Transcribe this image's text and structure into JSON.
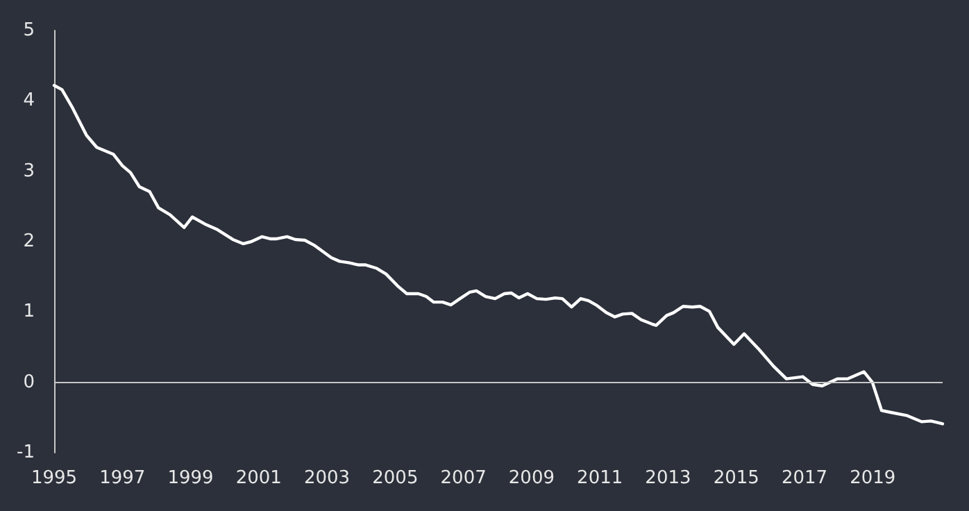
{
  "chart_data": {
    "type": "line",
    "xlim": [
      1995,
      2021.05
    ],
    "xticks": [
      1995,
      1997,
      1999,
      2001,
      2003,
      2005,
      2007,
      2009,
      2011,
      2013,
      2015,
      2017,
      2019
    ],
    "ylim": [
      -1,
      5
    ],
    "yticks": [
      -1,
      0,
      1,
      2,
      3,
      4,
      5
    ],
    "ref_lines": [
      {
        "axis": "y",
        "value": 0,
        "color": "#c8c8c8"
      }
    ],
    "marker": "none",
    "line_style": "solid",
    "series": [
      {
        "color": "#ffffff",
        "x": [
          1995.0,
          1995.23,
          1995.54,
          1995.95,
          1996.25,
          1996.74,
          1997.0,
          1997.24,
          1997.5,
          1997.8,
          1998.06,
          1998.4,
          1998.81,
          1999.05,
          1999.42,
          1999.79,
          2000.24,
          2000.54,
          2000.78,
          2001.09,
          2001.33,
          2001.53,
          2001.83,
          2002.07,
          2002.35,
          2002.62,
          2003.13,
          2003.37,
          2003.64,
          2003.91,
          2004.12,
          2004.46,
          2004.73,
          2005.07,
          2005.34,
          2005.68,
          2005.91,
          2006.13,
          2006.39,
          2006.63,
          2006.9,
          2007.18,
          2007.38,
          2007.65,
          2007.93,
          2008.2,
          2008.4,
          2008.63,
          2008.88,
          2009.15,
          2009.42,
          2009.69,
          2009.9,
          2010.17,
          2010.44,
          2010.67,
          2010.92,
          2011.19,
          2011.44,
          2011.67,
          2011.94,
          2012.21,
          2012.52,
          2012.65,
          2012.96,
          2013.16,
          2013.44,
          2013.71,
          2013.94,
          2014.21,
          2014.46,
          2014.93,
          2015.23,
          2015.68,
          2016.09,
          2016.47,
          2016.95,
          2017.24,
          2017.52,
          2017.97,
          2018.27,
          2018.74,
          2018.99,
          2019.26,
          2019.56,
          2019.99,
          2020.44,
          2020.71,
          2021.05
        ],
        "values": [
          4.22,
          4.16,
          3.9,
          3.51,
          3.34,
          3.24,
          3.08,
          2.98,
          2.78,
          2.71,
          2.48,
          2.38,
          2.2,
          2.35,
          2.25,
          2.17,
          2.03,
          1.97,
          2.0,
          2.07,
          2.04,
          2.04,
          2.07,
          2.03,
          2.02,
          1.95,
          1.77,
          1.72,
          1.7,
          1.67,
          1.67,
          1.62,
          1.54,
          1.37,
          1.26,
          1.26,
          1.22,
          1.14,
          1.14,
          1.1,
          1.19,
          1.28,
          1.3,
          1.22,
          1.19,
          1.26,
          1.27,
          1.2,
          1.26,
          1.19,
          1.18,
          1.2,
          1.19,
          1.07,
          1.19,
          1.16,
          1.09,
          0.99,
          0.93,
          0.97,
          0.98,
          0.89,
          0.83,
          0.81,
          0.95,
          0.99,
          1.08,
          1.07,
          1.08,
          1.01,
          0.78,
          0.54,
          0.69,
          0.46,
          0.23,
          0.05,
          0.08,
          -0.03,
          -0.05,
          0.05,
          0.05,
          0.15,
          0.0,
          -0.4,
          -0.43,
          -0.47,
          -0.56,
          -0.55,
          -0.59
        ]
      }
    ]
  }
}
